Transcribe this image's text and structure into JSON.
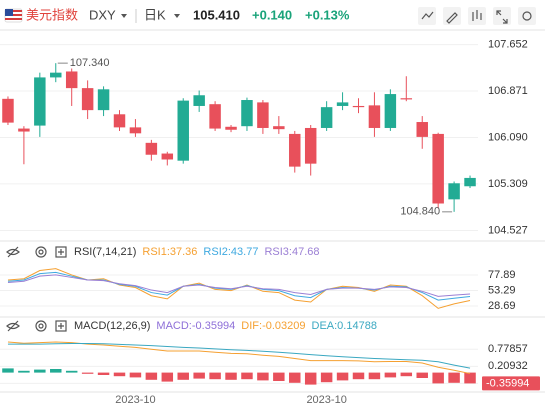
{
  "header": {
    "name": "美元指数",
    "symbol": "DXY",
    "period": "日K",
    "price": "105.410",
    "change": "+0.140",
    "change_pct": "+0.13%"
  },
  "chart_data": [
    {
      "type": "candlestick",
      "categories": [
        null,
        null,
        null,
        null,
        null,
        null,
        null,
        null,
        "2023-10",
        null,
        null,
        null,
        null,
        null,
        null,
        null,
        null,
        null,
        null,
        null,
        "2023-10",
        null,
        null,
        null,
        null,
        null,
        null,
        null,
        null,
        null
      ],
      "open": [
        106.74,
        106.24,
        106.29,
        107.1,
        107.2,
        106.92,
        106.55,
        106.48,
        106.26,
        106.0,
        105.82,
        105.7,
        106.62,
        106.65,
        106.27,
        106.28,
        106.68,
        106.28,
        106.15,
        106.25,
        106.25,
        106.62,
        106.62,
        106.63,
        106.25,
        106.75,
        106.35,
        106.15,
        105.05,
        105.27
      ],
      "high": [
        106.78,
        106.28,
        107.18,
        107.34,
        107.25,
        107.05,
        106.95,
        106.55,
        106.4,
        106.05,
        105.85,
        106.75,
        106.88,
        106.7,
        106.3,
        106.76,
        106.72,
        106.45,
        106.2,
        106.3,
        106.7,
        106.85,
        106.75,
        106.85,
        106.9,
        107.12,
        106.45,
        106.17,
        105.35,
        105.45
      ],
      "low": [
        106.3,
        105.64,
        106.1,
        107.02,
        106.62,
        106.4,
        106.45,
        106.2,
        106.1,
        105.7,
        105.62,
        105.65,
        106.52,
        106.2,
        106.18,
        106.2,
        106.15,
        106.15,
        105.5,
        105.45,
        106.2,
        106.55,
        106.5,
        106.1,
        106.2,
        106.7,
        105.9,
        104.9,
        104.84,
        105.24
      ],
      "close": [
        106.34,
        106.19,
        107.1,
        107.18,
        106.92,
        106.55,
        106.9,
        106.26,
        106.16,
        105.8,
        105.72,
        106.71,
        106.8,
        106.24,
        106.22,
        106.72,
        106.25,
        106.23,
        105.6,
        105.65,
        106.6,
        106.68,
        106.6,
        106.25,
        106.82,
        106.73,
        106.1,
        104.98,
        105.32,
        105.41
      ],
      "up_color": "#22ab94",
      "down_color": "#e8505b",
      "ylim": [
        104.4,
        107.83
      ],
      "yticks": [
        107.652,
        106.871,
        {
          "value": 106.09,
          "label": "106.090"
        },
        105.309,
        104.527
      ],
      "annotations": [
        "107.340",
        "104.840"
      ],
      "grid": true
    },
    {
      "type": "line",
      "title": "RSI(7,14,21)",
      "series": [
        {
          "name": "RSI1:37.36",
          "color": "#f5a031",
          "values": [
            70,
            72,
            85,
            88,
            78,
            70,
            72,
            62,
            58,
            45,
            40,
            60,
            65,
            55,
            53,
            62,
            52,
            50,
            38,
            35,
            55,
            60,
            58,
            52,
            62,
            60,
            45,
            25,
            32,
            37.36
          ]
        },
        {
          "name": "RSI2:43.77",
          "color": "#3fa9e0",
          "values": [
            68,
            70,
            80,
            82,
            76,
            70,
            70,
            63,
            60,
            50,
            46,
            60,
            63,
            57,
            55,
            61,
            55,
            53,
            45,
            42,
            55,
            58,
            57,
            54,
            60,
            59,
            50,
            38,
            41,
            43.77
          ]
        },
        {
          "name": "RSI3:47.68",
          "color": "#9b7fd4",
          "values": [
            66,
            68,
            76,
            78,
            74,
            70,
            69,
            64,
            61,
            54,
            50,
            60,
            62,
            58,
            56,
            60,
            56,
            55,
            50,
            47,
            55,
            57,
            57,
            55,
            59,
            58,
            52,
            44,
            46,
            47.68
          ]
        }
      ],
      "ylim": [
        16,
        98.5
      ],
      "yticks": [
        77.89,
        53.29,
        28.69
      ],
      "grid": true
    },
    {
      "type": "macd",
      "title": "MACD(12,26,9)",
      "series": [
        {
          "name": "MACD:-0.35994",
          "color": "#8e6fd8",
          "style": "bar",
          "values": [
            0.14,
            0.06,
            0.1,
            0.12,
            0.06,
            -0.04,
            -0.08,
            -0.12,
            -0.16,
            -0.24,
            -0.3,
            -0.24,
            -0.2,
            -0.22,
            -0.24,
            -0.22,
            -0.26,
            -0.28,
            -0.34,
            -0.4,
            -0.32,
            -0.26,
            -0.22,
            -0.22,
            -0.16,
            -0.12,
            -0.18,
            -0.36,
            -0.34,
            -0.35994
          ]
        },
        {
          "name": "DIF:-0.03209",
          "color": "#f5a031",
          "style": "line",
          "values": [
            1.02,
            0.98,
            1.0,
            1.02,
            1.0,
            0.95,
            0.92,
            0.88,
            0.84,
            0.78,
            0.72,
            0.72,
            0.72,
            0.68,
            0.64,
            0.63,
            0.58,
            0.54,
            0.47,
            0.4,
            0.4,
            0.4,
            0.39,
            0.36,
            0.37,
            0.37,
            0.32,
            0.18,
            0.08,
            -0.03209
          ]
        },
        {
          "name": "DEA:0.14788",
          "color": "#3aa8c1",
          "style": "line",
          "values": [
            0.95,
            0.95,
            0.95,
            0.96,
            0.97,
            0.97,
            0.96,
            0.94,
            0.92,
            0.9,
            0.87,
            0.84,
            0.82,
            0.79,
            0.76,
            0.74,
            0.71,
            0.68,
            0.64,
            0.6,
            0.56,
            0.53,
            0.5,
            0.47,
            0.45,
            0.43,
            0.41,
            0.36,
            0.25,
            0.14788
          ]
        }
      ],
      "up_color": "#22ab94",
      "down_color": "#e8505b",
      "ylim": [
        -0.58,
        1.22
      ],
      "yticks": [
        0.77857,
        0.20932,
        -0.35994
      ],
      "grid": true
    }
  ]
}
